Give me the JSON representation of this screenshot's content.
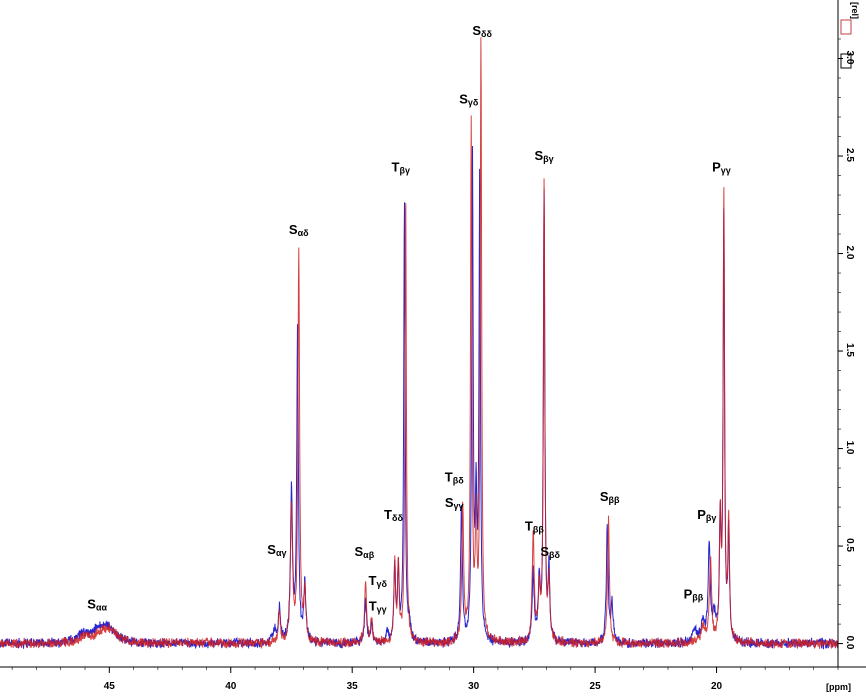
{
  "chart_data": {
    "type": "line",
    "title": "",
    "xlabel": "[ppm]",
    "ylabel": "[rel]",
    "xlim": [
      49.5,
      15.0
    ],
    "ylim": [
      -0.12,
      3.3
    ],
    "x_reversed": true,
    "grid": false,
    "x_ticks": [
      {
        "value": 45,
        "label": "45"
      },
      {
        "value": 40,
        "label": "40"
      },
      {
        "value": 35,
        "label": "35"
      },
      {
        "value": 30,
        "label": "30"
      },
      {
        "value": 25,
        "label": "25"
      },
      {
        "value": 20,
        "label": "20"
      }
    ],
    "y_ticks": [
      {
        "value": 0.0,
        "label": "0.0"
      },
      {
        "value": 0.5,
        "label": "0.5"
      },
      {
        "value": 1.0,
        "label": "1.0"
      },
      {
        "value": 1.5,
        "label": "1.5"
      },
      {
        "value": 2.0,
        "label": "2.0"
      },
      {
        "value": 2.5,
        "label": "2.5"
      },
      {
        "value": 3.0,
        "label": "3.0"
      }
    ],
    "series": [
      {
        "color": "#1a1ad0",
        "peaks": [
          {
            "x": 46.1,
            "h": 0.04,
            "w": 0.25
          },
          {
            "x": 45.4,
            "h": 0.07,
            "w": 0.35
          },
          {
            "x": 45.0,
            "h": 0.06,
            "w": 0.3
          },
          {
            "x": 38.2,
            "h": 0.06,
            "w": 0.08
          },
          {
            "x": 38.0,
            "h": 0.18,
            "w": 0.05
          },
          {
            "x": 37.5,
            "h": 0.78,
            "w": 0.05
          },
          {
            "x": 37.25,
            "h": 1.6,
            "w": 0.04
          },
          {
            "x": 36.95,
            "h": 0.3,
            "w": 0.05
          },
          {
            "x": 34.45,
            "h": 0.22,
            "w": 0.05
          },
          {
            "x": 34.2,
            "h": 0.1,
            "w": 0.05
          },
          {
            "x": 33.55,
            "h": 0.06,
            "w": 0.05
          },
          {
            "x": 33.25,
            "h": 0.38,
            "w": 0.04
          },
          {
            "x": 33.1,
            "h": 0.36,
            "w": 0.04
          },
          {
            "x": 32.85,
            "h": 2.25,
            "w": 0.035
          },
          {
            "x": 32.65,
            "h": 0.1,
            "w": 0.05
          },
          {
            "x": 30.5,
            "h": 0.68,
            "w": 0.045
          },
          {
            "x": 30.05,
            "h": 2.5,
            "w": 0.035
          },
          {
            "x": 29.9,
            "h": 0.65,
            "w": 0.04
          },
          {
            "x": 29.75,
            "h": 2.4,
            "w": 0.035
          },
          {
            "x": 27.55,
            "h": 0.35,
            "w": 0.05
          },
          {
            "x": 27.3,
            "h": 0.3,
            "w": 0.05
          },
          {
            "x": 27.1,
            "h": 2.3,
            "w": 0.035
          },
          {
            "x": 26.9,
            "h": 0.38,
            "w": 0.04
          },
          {
            "x": 24.5,
            "h": 0.6,
            "w": 0.045
          },
          {
            "x": 24.3,
            "h": 0.2,
            "w": 0.05
          },
          {
            "x": 20.9,
            "h": 0.06,
            "w": 0.1
          },
          {
            "x": 20.55,
            "h": 0.1,
            "w": 0.1
          },
          {
            "x": 20.3,
            "h": 0.5,
            "w": 0.05
          },
          {
            "x": 20.1,
            "h": 0.12,
            "w": 0.08
          },
          {
            "x": 19.85,
            "h": 0.58,
            "w": 0.04
          },
          {
            "x": 19.7,
            "h": 2.2,
            "w": 0.035
          },
          {
            "x": 19.5,
            "h": 0.55,
            "w": 0.04
          }
        ]
      },
      {
        "color": "#d02020",
        "peaks": [
          {
            "x": 46.0,
            "h": 0.03,
            "w": 0.25
          },
          {
            "x": 45.3,
            "h": 0.05,
            "w": 0.35
          },
          {
            "x": 44.9,
            "h": 0.05,
            "w": 0.3
          },
          {
            "x": 38.0,
            "h": 0.15,
            "w": 0.05
          },
          {
            "x": 37.5,
            "h": 0.7,
            "w": 0.05
          },
          {
            "x": 37.2,
            "h": 2.0,
            "w": 0.04
          },
          {
            "x": 36.95,
            "h": 0.25,
            "w": 0.05
          },
          {
            "x": 34.45,
            "h": 0.3,
            "w": 0.05
          },
          {
            "x": 34.2,
            "h": 0.12,
            "w": 0.05
          },
          {
            "x": 33.25,
            "h": 0.4,
            "w": 0.04
          },
          {
            "x": 33.1,
            "h": 0.38,
            "w": 0.04
          },
          {
            "x": 32.8,
            "h": 2.32,
            "w": 0.035
          },
          {
            "x": 30.45,
            "h": 0.7,
            "w": 0.045
          },
          {
            "x": 30.1,
            "h": 2.65,
            "w": 0.035
          },
          {
            "x": 29.9,
            "h": 0.6,
            "w": 0.04
          },
          {
            "x": 29.7,
            "h": 3.05,
            "w": 0.035
          },
          {
            "x": 27.55,
            "h": 0.55,
            "w": 0.05
          },
          {
            "x": 27.3,
            "h": 0.25,
            "w": 0.05
          },
          {
            "x": 27.1,
            "h": 2.37,
            "w": 0.035
          },
          {
            "x": 26.9,
            "h": 0.3,
            "w": 0.04
          },
          {
            "x": 24.45,
            "h": 0.64,
            "w": 0.045
          },
          {
            "x": 20.55,
            "h": 0.08,
            "w": 0.1
          },
          {
            "x": 20.25,
            "h": 0.42,
            "w": 0.05
          },
          {
            "x": 19.85,
            "h": 0.6,
            "w": 0.04
          },
          {
            "x": 19.7,
            "h": 2.28,
            "w": 0.035
          },
          {
            "x": 19.5,
            "h": 0.6,
            "w": 0.04
          }
        ]
      }
    ],
    "annotations": [
      {
        "main": "S",
        "sub": "αα",
        "x": 45.5,
        "y": 0.18
      },
      {
        "main": "S",
        "sub": "αγ",
        "x": 38.1,
        "y": 0.46
      },
      {
        "main": "S",
        "sub": "αδ",
        "x": 37.2,
        "y": 2.1
      },
      {
        "main": "S",
        "sub": "αβ",
        "x": 34.5,
        "y": 0.45
      },
      {
        "main": "T",
        "sub": "γδ",
        "x": 33.95,
        "y": 0.3
      },
      {
        "main": "T",
        "sub": "γγ",
        "x": 33.95,
        "y": 0.17
      },
      {
        "main": "T",
        "sub": "δδ",
        "x": 33.3,
        "y": 0.64
      },
      {
        "main": "T",
        "sub": "βγ",
        "x": 33.0,
        "y": 2.42
      },
      {
        "main": "T",
        "sub": "βδ",
        "x": 30.8,
        "y": 0.83
      },
      {
        "main": "S",
        "sub": "γγ",
        "x": 30.8,
        "y": 0.7
      },
      {
        "main": "S",
        "sub": "γδ",
        "x": 30.2,
        "y": 2.77
      },
      {
        "main": "S",
        "sub": "δδ",
        "x": 29.65,
        "y": 3.12
      },
      {
        "main": "T",
        "sub": "ββ",
        "x": 27.5,
        "y": 0.58
      },
      {
        "main": "S",
        "sub": "βδ",
        "x": 26.85,
        "y": 0.45
      },
      {
        "main": "S",
        "sub": "βγ",
        "x": 27.1,
        "y": 2.48
      },
      {
        "main": "S",
        "sub": "ββ",
        "x": 24.4,
        "y": 0.73
      },
      {
        "main": "P",
        "sub": "βγ",
        "x": 20.4,
        "y": 0.64
      },
      {
        "main": "P",
        "sub": "ββ",
        "x": 20.95,
        "y": 0.23
      },
      {
        "main": "P",
        "sub": "γγ",
        "x": 19.8,
        "y": 2.42
      }
    ]
  }
}
